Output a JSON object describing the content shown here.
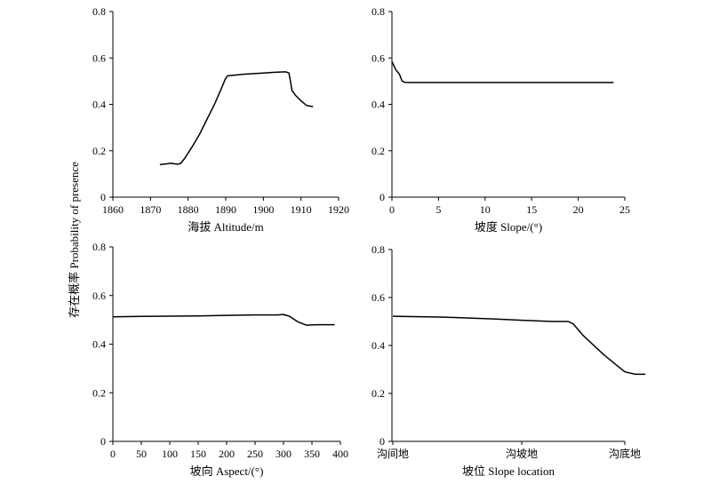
{
  "shared_ylabel": "存在概率 Probability of presence",
  "chart_data": [
    {
      "type": "line",
      "xlabel": "海拔 Altitude/m",
      "ylabel": "",
      "xlim": [
        1860,
        1920
      ],
      "ylim": [
        0,
        0.8
      ],
      "xticks": [
        1860,
        1870,
        1880,
        1890,
        1900,
        1910,
        1920
      ],
      "xtick_labels": [
        "1860",
        "1870",
        "1880",
        "1890",
        "1900",
        "1910",
        "1920"
      ],
      "yticks": [
        0,
        0.2,
        0.4,
        0.6,
        0.8
      ],
      "ytick_labels": [
        "0",
        "0.2",
        "0.4",
        "0.6",
        "0.8"
      ],
      "grid": false,
      "series": [
        {
          "x": [
            1872.5,
            1875.5,
            1877,
            1878,
            1879,
            1881,
            1883,
            1885,
            1887,
            1889,
            1889.9,
            1890.5,
            1895,
            1900,
            1903,
            1906,
            1906.8,
            1907.2,
            1907.6,
            1908.5,
            1910,
            1911.5,
            1913.2
          ],
          "y": [
            0.14,
            0.146,
            0.142,
            0.145,
            0.165,
            0.215,
            0.27,
            0.335,
            0.4,
            0.475,
            0.51,
            0.523,
            0.53,
            0.535,
            0.538,
            0.54,
            0.535,
            0.5,
            0.46,
            0.44,
            0.415,
            0.395,
            0.39
          ]
        }
      ]
    },
    {
      "type": "line",
      "xlabel": "坡度 Slope/(°)",
      "ylabel": "",
      "xlim": [
        0,
        25
      ],
      "ylim": [
        0,
        0.8
      ],
      "xticks": [
        0,
        5,
        10,
        15,
        20,
        25
      ],
      "xtick_labels": [
        "0",
        "5",
        "10",
        "15",
        "20",
        "25"
      ],
      "yticks": [
        0,
        0.2,
        0.4,
        0.6,
        0.8
      ],
      "ytick_labels": [
        "0",
        "0.2",
        "0.4",
        "0.6",
        "0.8"
      ],
      "grid": false,
      "series": [
        {
          "x": [
            0,
            0.4,
            0.8,
            1.1,
            1.4,
            2,
            5,
            10,
            15,
            20,
            23.8
          ],
          "y": [
            0.585,
            0.55,
            0.53,
            0.5,
            0.495,
            0.494,
            0.494,
            0.494,
            0.494,
            0.494,
            0.494
          ]
        }
      ]
    },
    {
      "type": "line",
      "xlabel": "坡向 Aspect/(°)",
      "ylabel": "",
      "xlim": [
        0,
        400
      ],
      "ylim": [
        0,
        0.8
      ],
      "xticks": [
        0,
        50,
        100,
        150,
        200,
        250,
        300,
        350,
        400
      ],
      "xtick_labels": [
        "0",
        "50",
        "100",
        "150",
        "200",
        "250",
        "300",
        "350",
        "400"
      ],
      "yticks": [
        0,
        0.2,
        0.4,
        0.6,
        0.8
      ],
      "ytick_labels": [
        "0",
        "0.2",
        "0.4",
        "0.6",
        "0.8"
      ],
      "grid": false,
      "series": [
        {
          "x": [
            0,
            50,
            150,
            250,
            290,
            300,
            310,
            325,
            340,
            360,
            390
          ],
          "y": [
            0.512,
            0.514,
            0.516,
            0.52,
            0.52,
            0.522,
            0.515,
            0.492,
            0.478,
            0.48,
            0.48
          ]
        }
      ]
    },
    {
      "type": "line",
      "xlabel": "坡位 Slope location",
      "ylabel": "",
      "xlim": [
        0,
        2
      ],
      "ylim": [
        0,
        0.8
      ],
      "xticks": [
        0,
        1,
        2
      ],
      "xtick_labels": [
        "沟间地",
        "沟坡地",
        "沟底地"
      ],
      "yticks": [
        0,
        0.2,
        0.4,
        0.6,
        0.8
      ],
      "ytick_labels": [
        "0",
        "0.2",
        "0.4",
        "0.6",
        "0.8"
      ],
      "grid": false,
      "series": [
        {
          "x": [
            0,
            0.4,
            0.8,
            1.0,
            1.3,
            1.45,
            1.5,
            1.6,
            1.8,
            2.0,
            2.1,
            2.2
          ],
          "y": [
            0.522,
            0.518,
            0.51,
            0.505,
            0.5,
            0.5,
            0.49,
            0.44,
            0.36,
            0.29,
            0.28,
            0.28
          ]
        }
      ]
    }
  ]
}
